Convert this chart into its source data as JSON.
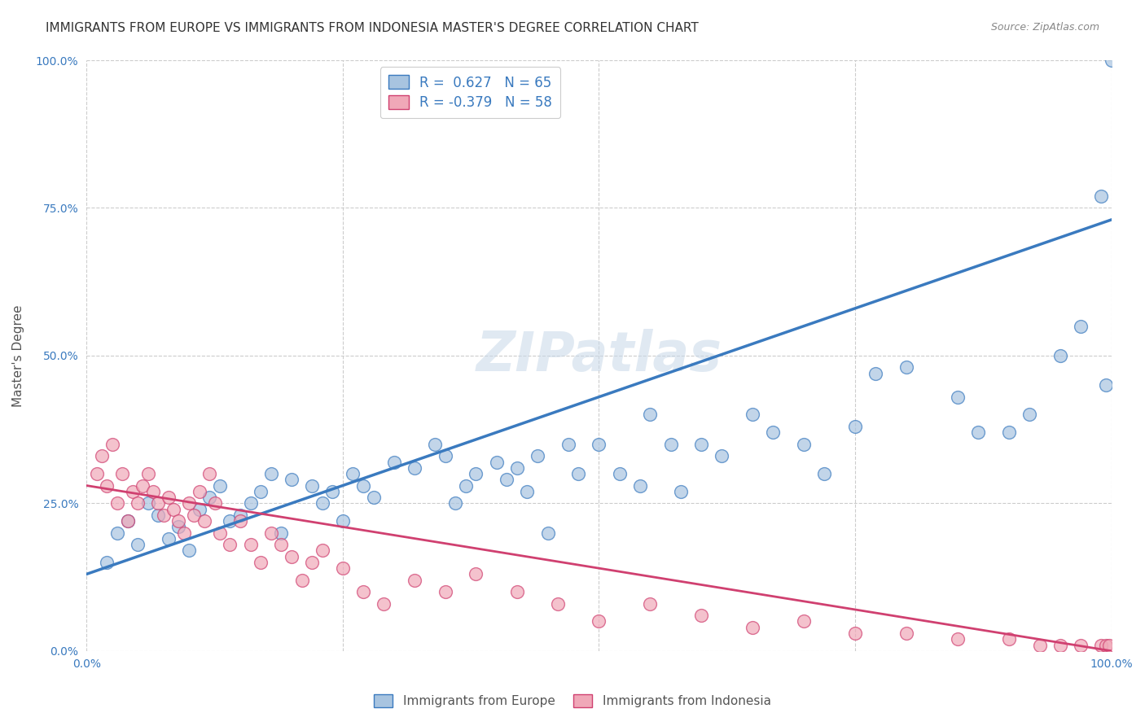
{
  "title": "IMMIGRANTS FROM EUROPE VS IMMIGRANTS FROM INDONESIA MASTER'S DEGREE CORRELATION CHART",
  "source": "Source: ZipAtlas.com",
  "ylabel": "Master's Degree",
  "y_tick_positions": [
    0.0,
    0.25,
    0.5,
    0.75,
    1.0
  ],
  "xlim": [
    0.0,
    1.0
  ],
  "ylim": [
    0.0,
    1.0
  ],
  "europe_color": "#a8c4e0",
  "europe_line_color": "#3a7abf",
  "indonesia_color": "#f0a8b8",
  "indonesia_line_color": "#d04070",
  "europe_R": 0.627,
  "europe_N": 65,
  "indonesia_R": -0.379,
  "indonesia_N": 58,
  "background_color": "#ffffff",
  "grid_color": "#cccccc",
  "watermark": "ZIPatlas",
  "europe_scatter_x": [
    0.02,
    0.03,
    0.04,
    0.05,
    0.06,
    0.07,
    0.08,
    0.09,
    0.1,
    0.11,
    0.12,
    0.13,
    0.14,
    0.15,
    0.16,
    0.17,
    0.18,
    0.19,
    0.2,
    0.22,
    0.23,
    0.24,
    0.25,
    0.26,
    0.27,
    0.28,
    0.3,
    0.32,
    0.34,
    0.35,
    0.36,
    0.37,
    0.38,
    0.4,
    0.41,
    0.42,
    0.43,
    0.44,
    0.45,
    0.47,
    0.48,
    0.5,
    0.52,
    0.54,
    0.55,
    0.57,
    0.58,
    0.6,
    0.62,
    0.65,
    0.67,
    0.7,
    0.72,
    0.75,
    0.77,
    0.8,
    0.85,
    0.87,
    0.9,
    0.92,
    0.95,
    0.97,
    0.99,
    0.995,
    1.0
  ],
  "europe_scatter_y": [
    0.15,
    0.2,
    0.22,
    0.18,
    0.25,
    0.23,
    0.19,
    0.21,
    0.17,
    0.24,
    0.26,
    0.28,
    0.22,
    0.23,
    0.25,
    0.27,
    0.3,
    0.2,
    0.29,
    0.28,
    0.25,
    0.27,
    0.22,
    0.3,
    0.28,
    0.26,
    0.32,
    0.31,
    0.35,
    0.33,
    0.25,
    0.28,
    0.3,
    0.32,
    0.29,
    0.31,
    0.27,
    0.33,
    0.2,
    0.35,
    0.3,
    0.35,
    0.3,
    0.28,
    0.4,
    0.35,
    0.27,
    0.35,
    0.33,
    0.4,
    0.37,
    0.35,
    0.3,
    0.38,
    0.47,
    0.48,
    0.43,
    0.37,
    0.37,
    0.4,
    0.5,
    0.55,
    0.77,
    0.45,
    1.0
  ],
  "indonesia_scatter_x": [
    0.01,
    0.015,
    0.02,
    0.025,
    0.03,
    0.035,
    0.04,
    0.045,
    0.05,
    0.055,
    0.06,
    0.065,
    0.07,
    0.075,
    0.08,
    0.085,
    0.09,
    0.095,
    0.1,
    0.105,
    0.11,
    0.115,
    0.12,
    0.125,
    0.13,
    0.14,
    0.15,
    0.16,
    0.17,
    0.18,
    0.19,
    0.2,
    0.21,
    0.22,
    0.23,
    0.25,
    0.27,
    0.29,
    0.32,
    0.35,
    0.38,
    0.42,
    0.46,
    0.5,
    0.55,
    0.6,
    0.65,
    0.7,
    0.75,
    0.8,
    0.85,
    0.9,
    0.93,
    0.95,
    0.97,
    0.99,
    0.995,
    0.998
  ],
  "indonesia_scatter_y": [
    0.3,
    0.33,
    0.28,
    0.35,
    0.25,
    0.3,
    0.22,
    0.27,
    0.25,
    0.28,
    0.3,
    0.27,
    0.25,
    0.23,
    0.26,
    0.24,
    0.22,
    0.2,
    0.25,
    0.23,
    0.27,
    0.22,
    0.3,
    0.25,
    0.2,
    0.18,
    0.22,
    0.18,
    0.15,
    0.2,
    0.18,
    0.16,
    0.12,
    0.15,
    0.17,
    0.14,
    0.1,
    0.08,
    0.12,
    0.1,
    0.13,
    0.1,
    0.08,
    0.05,
    0.08,
    0.06,
    0.04,
    0.05,
    0.03,
    0.03,
    0.02,
    0.02,
    0.01,
    0.01,
    0.01,
    0.01,
    0.01,
    0.01
  ],
  "europe_line_x": [
    0.0,
    1.0
  ],
  "europe_line_y": [
    0.13,
    0.73
  ],
  "indonesia_line_x": [
    0.0,
    1.0
  ],
  "indonesia_line_y": [
    0.28,
    0.0
  ],
  "title_fontsize": 11,
  "axis_label_fontsize": 11,
  "tick_fontsize": 10,
  "legend_fontsize": 12,
  "watermark_fontsize": 48
}
